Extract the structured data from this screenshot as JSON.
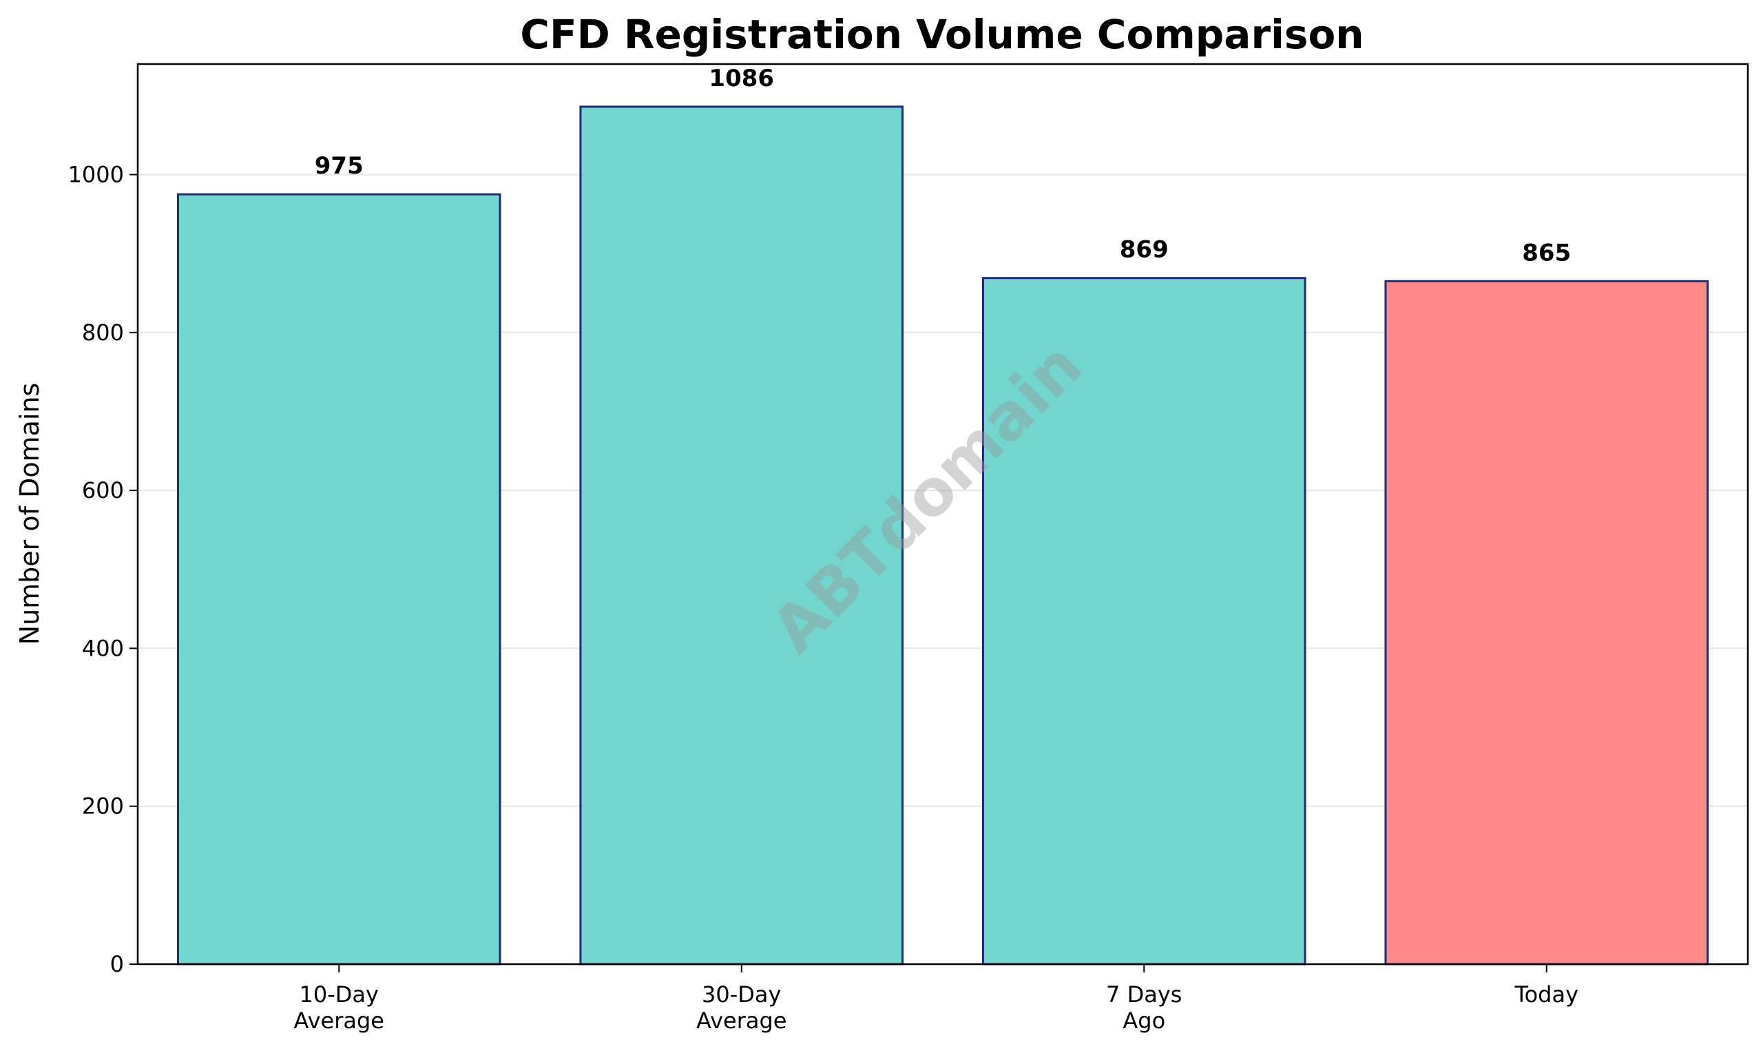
{
  "chart_data": {
    "type": "bar",
    "title": "CFD Registration Volume Comparison",
    "xlabel": "",
    "ylabel": "Number of Domains",
    "categories": [
      [
        "10-Day",
        "Average"
      ],
      [
        "30-Day",
        "Average"
      ],
      [
        "7 Days",
        "Ago"
      ],
      [
        "Today"
      ]
    ],
    "values": [
      975,
      1086,
      869,
      865
    ],
    "data_labels": [
      "975",
      "1086",
      "869",
      "865"
    ],
    "bar_colors": [
      "#72D6CF",
      "#72D6CF",
      "#72D6CF",
      "#FF8A8A"
    ],
    "edge_color": "#1F2A7A",
    "ylim": [
      0,
      1140
    ],
    "yticks": [
      0,
      200,
      400,
      600,
      800,
      1000
    ],
    "grid": "horizontal",
    "watermark": "ABTdomain"
  }
}
